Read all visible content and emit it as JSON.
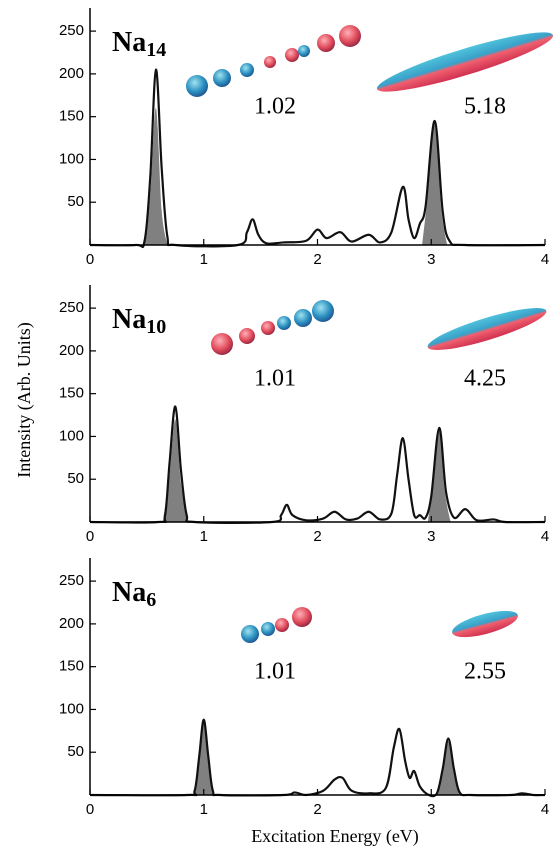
{
  "chart_data": [
    {
      "type": "line",
      "title": "Na14",
      "annotations": [
        "1.02",
        "5.18"
      ],
      "xlim": [
        0,
        4
      ],
      "xticks": [
        0,
        1,
        2,
        3,
        4
      ],
      "ylim": [
        0,
        270
      ],
      "yticks": [
        50,
        100,
        150,
        200,
        250
      ],
      "series": [
        {
          "color": "#111111",
          "fill": false,
          "x": [
            0,
            0.4,
            0.48,
            0.53,
            0.58,
            0.63,
            0.68,
            0.75,
            1.3,
            1.38,
            1.43,
            1.48,
            1.55,
            1.7,
            1.9,
            2.0,
            2.08,
            2.2,
            2.3,
            2.45,
            2.55,
            2.65,
            2.75,
            2.8,
            2.85,
            2.9,
            2.95,
            3.03,
            3.1,
            3.16,
            3.3,
            4
          ],
          "values": [
            0,
            0,
            5,
            80,
            205,
            90,
            10,
            0,
            0,
            15,
            30,
            12,
            2,
            3,
            5,
            18,
            8,
            15,
            4,
            12,
            3,
            15,
            68,
            30,
            8,
            25,
            45,
            145,
            40,
            5,
            0,
            0
          ]
        },
        {
          "color": "#808080",
          "fill": true,
          "x": [
            0.48,
            0.53,
            0.58,
            0.63,
            0.68,
            1.8,
            2.92,
            2.97,
            3.03,
            3.09,
            3.14
          ],
          "values": [
            0,
            60,
            160,
            40,
            0,
            null,
            0,
            60,
            145,
            40,
            0
          ]
        }
      ]
    },
    {
      "type": "line",
      "title": "Na10",
      "annotations": [
        "1.01",
        "4.25"
      ],
      "ylabel": "Intensity  (Arb. Units)",
      "xlim": [
        0,
        4
      ],
      "xticks": [
        0,
        1,
        2,
        3,
        4
      ],
      "ylim": [
        0,
        270
      ],
      "yticks": [
        50,
        100,
        150,
        200,
        250
      ],
      "series": [
        {
          "color": "#111111",
          "fill": false,
          "x": [
            0,
            0.6,
            0.66,
            0.7,
            0.75,
            0.8,
            0.85,
            0.92,
            1.6,
            1.68,
            1.73,
            1.78,
            1.9,
            2.05,
            2.15,
            2.25,
            2.35,
            2.45,
            2.55,
            2.65,
            2.7,
            2.75,
            2.8,
            2.85,
            2.9,
            2.95,
            3.0,
            3.07,
            3.13,
            3.2,
            3.3,
            3.4,
            3.55,
            3.65,
            4
          ],
          "values": [
            0,
            0,
            8,
            70,
            135,
            60,
            8,
            0,
            0,
            8,
            20,
            8,
            2,
            4,
            12,
            3,
            4,
            12,
            3,
            10,
            55,
            98,
            50,
            8,
            8,
            5,
            30,
            110,
            35,
            5,
            15,
            2,
            3,
            0,
            0
          ]
        },
        {
          "color": "#808080",
          "fill": true,
          "x": [
            0.64,
            0.7,
            0.75,
            0.8,
            0.86,
            2.0,
            2.97,
            3.02,
            3.07,
            3.12,
            3.17
          ],
          "values": [
            0,
            55,
            120,
            45,
            0,
            null,
            0,
            50,
            110,
            35,
            0
          ]
        }
      ]
    },
    {
      "type": "line",
      "title": "Na6",
      "annotations": [
        "1.01",
        "2.55"
      ],
      "xlabel": "Excitation Energy (eV)",
      "xlim": [
        0,
        4
      ],
      "xticks": [
        0,
        1,
        2,
        3,
        4
      ],
      "ylim": [
        0,
        270
      ],
      "yticks": [
        50,
        100,
        150,
        200,
        250
      ],
      "series": [
        {
          "color": "#111111",
          "fill": false,
          "x": [
            0,
            0.85,
            0.92,
            0.96,
            1.0,
            1.04,
            1.08,
            1.15,
            1.7,
            1.8,
            1.9,
            2.05,
            2.15,
            2.22,
            2.3,
            2.45,
            2.6,
            2.67,
            2.72,
            2.77,
            2.81,
            2.85,
            2.9,
            2.98,
            3.05,
            3.1,
            3.15,
            3.2,
            3.25,
            3.35,
            3.7,
            3.8,
            3.9,
            4
          ],
          "values": [
            0,
            0,
            5,
            45,
            88,
            45,
            5,
            0,
            0,
            3,
            0,
            5,
            18,
            20,
            5,
            2,
            8,
            55,
            77,
            40,
            20,
            28,
            10,
            0,
            2,
            30,
            66,
            30,
            3,
            0,
            0,
            2,
            0,
            0
          ]
        },
        {
          "color": "#808080",
          "fill": true,
          "x": [
            0.91,
            0.96,
            1.0,
            1.04,
            1.09,
            2.0,
            3.05,
            3.1,
            3.15,
            3.2,
            3.25
          ],
          "values": [
            0,
            45,
            88,
            45,
            0,
            null,
            0,
            30,
            66,
            30,
            0
          ]
        }
      ]
    }
  ]
}
